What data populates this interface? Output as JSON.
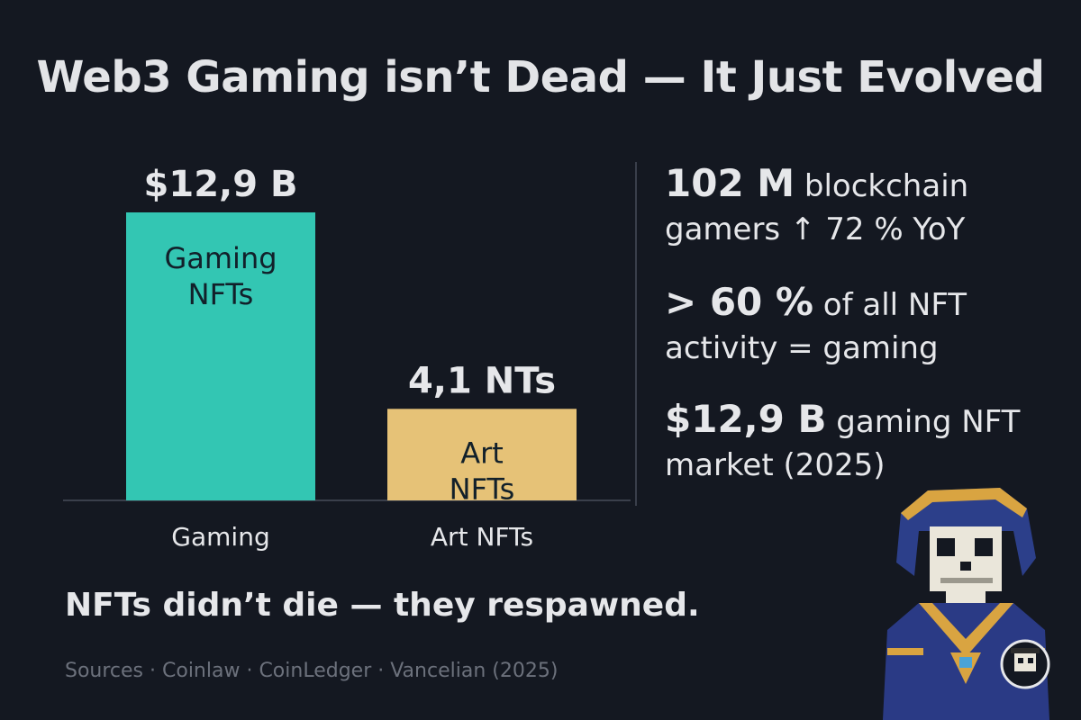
{
  "title": "Web3 Gaming isn’t Dead — It Just Evolved",
  "chart_data": {
    "type": "bar",
    "categories": [
      "Gaming",
      "Art NFTs"
    ],
    "values": [
      12.9,
      4.1
    ],
    "value_labels": [
      "$12,9 B",
      "4,1 NTs"
    ],
    "bar_labels": [
      [
        "Gaming",
        "NFTs"
      ],
      [
        "Art",
        "NFTs"
      ]
    ],
    "colors": [
      "#33c6b3",
      "#e6c277"
    ],
    "ylim": [
      0,
      12.9
    ]
  },
  "stats": [
    {
      "big": "102 M",
      "text1": " blockchain",
      "text2": "gamers ↑ 72 % YoY"
    },
    {
      "big": "> 60 %",
      "text1": " of all NFT",
      "text2": "activity = gaming"
    },
    {
      "big": "$12,9 B",
      "text1": " gaming NFT",
      "text2": "market (2025)"
    }
  ],
  "tagline": "NFTs didn’t die — they respawned.",
  "sources": "Sources · Coinlaw · CoinLedger · Vancelian (2025)",
  "mascot": {
    "icon": "pixel-skeleton-mage-icon",
    "badge_icon": "skull-pirate-avatar-icon"
  }
}
